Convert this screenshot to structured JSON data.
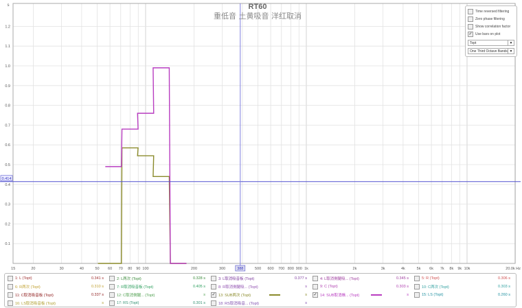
{
  "title": "RT60",
  "subtitle": "重低音 土黄吸音 洋红取消",
  "controls": {
    "time_reversed": {
      "label": "Time reversed filtering",
      "checked": false
    },
    "zero_phase": {
      "label": "Zero phase filtering",
      "checked": false
    },
    "correlation": {
      "label": "Show correlation factor",
      "checked": false
    },
    "use_bars": {
      "label": "Use bars on plot",
      "checked": true
    },
    "metric_select": "Topt",
    "band_select": "One Third Octave Bands"
  },
  "cursor": {
    "y_value": "0.414",
    "x_value": "388"
  },
  "chart_data": {
    "type": "line",
    "y_unit": "s",
    "x_unit": "Hz",
    "x_scale": "log",
    "xlim": [
      15,
      20000
    ],
    "ylim": [
      0,
      1.3
    ],
    "y_ticks": [
      "0.1",
      "0.2",
      "0.3",
      "0.4",
      "0.5",
      "0.6",
      "0.7",
      "0.8",
      "0.9",
      "1.0",
      "1.1",
      "1.2"
    ],
    "x_ticks": [
      {
        "v": 15,
        "l": "15"
      },
      {
        "v": 20,
        "l": "20"
      },
      {
        "v": 30,
        "l": "30"
      },
      {
        "v": 40,
        "l": "40"
      },
      {
        "v": 50,
        "l": "50"
      },
      {
        "v": 60,
        "l": "60"
      },
      {
        "v": 70,
        "l": "70"
      },
      {
        "v": 80,
        "l": "80"
      },
      {
        "v": 90,
        "l": "90"
      },
      {
        "v": 100,
        "l": "100"
      },
      {
        "v": 200,
        "l": "200"
      },
      {
        "v": 300,
        "l": "300"
      },
      {
        "v": 500,
        "l": "500"
      },
      {
        "v": 600,
        "l": "600"
      },
      {
        "v": 700,
        "l": "700"
      },
      {
        "v": 800,
        "l": "800"
      },
      {
        "v": 900,
        "l": "900"
      },
      {
        "v": 1000,
        "l": "1k"
      },
      {
        "v": 2000,
        "l": "2k"
      },
      {
        "v": 3000,
        "l": "3k"
      },
      {
        "v": 4000,
        "l": "4k"
      },
      {
        "v": 5000,
        "l": "5k"
      },
      {
        "v": 6000,
        "l": "6k"
      },
      {
        "v": 7000,
        "l": "7k"
      },
      {
        "v": 8000,
        "l": "8k"
      },
      {
        "v": 9000,
        "l": "9k"
      },
      {
        "v": 10000,
        "l": "10k"
      },
      {
        "v": 20000,
        "l": "20.0k Hz"
      }
    ],
    "grid": true,
    "bands": [
      63,
      80,
      100,
      125,
      160
    ],
    "series": [
      {
        "name": "14: SUB取消帳... (Topt)",
        "color": "#b83cc0",
        "values": [
          0.49,
          0.68,
          0.76,
          0.99,
          0
        ]
      },
      {
        "name": "13: SUB两次 (Topt)",
        "color": "#8a8a2a",
        "values": [
          0,
          0.585,
          0.545,
          0.44,
          0
        ]
      }
    ]
  },
  "legend": [
    {
      "label": "1: L (Topt)",
      "value": "0.341 s",
      "color": "#a03030",
      "checked": false
    },
    {
      "label": "2: L两次 (Topt)",
      "value": "0.328 s",
      "color": "#3a8a3a",
      "checked": false
    },
    {
      "label": "3: L取消吸音板 (Topt)",
      "value": "0.377 s",
      "color": "#8040a0",
      "checked": false
    },
    {
      "label": "4: L取消側腿吸... (Topt)",
      "value": "0.345 s",
      "color": "#a040a0",
      "checked": false
    },
    {
      "label": "5: R (Topt)",
      "value": "0.306 s",
      "color": "#d05050",
      "checked": false
    },
    {
      "label": "6: R两次 (Topt)",
      "value": "0.310 s",
      "color": "#c0a030",
      "checked": false
    },
    {
      "label": "7: R取消吸音板 (Topt)",
      "value": "0.405 s",
      "color": "#30a060",
      "checked": false
    },
    {
      "label": "8: R取消側腿吸... (Topt)",
      "value": "s",
      "color": "#9050b0",
      "checked": false
    },
    {
      "label": "9: C (Topt)",
      "value": "0.303 s",
      "color": "#b040b0",
      "checked": false
    },
    {
      "label": "10: C两次 (Topt)",
      "value": "0.303 s",
      "color": "#30a0a0",
      "checked": false
    },
    {
      "label": "11: C取消吸音板 (Topt)",
      "value": "0.337 s",
      "color": "#902020",
      "checked": false
    },
    {
      "label": "12: C取消側腿... (Topt)",
      "value": "s",
      "color": "#50a050",
      "checked": false
    },
    {
      "label": "13: SUB两次 (Topt)",
      "value": "s",
      "color": "#8a8a2a",
      "checked": true
    },
    {
      "label": "14: SUB取消帳... (Topt)",
      "value": "s",
      "color": "#b83cc0",
      "checked": true
    },
    {
      "label": "15: LS (Topt)",
      "value": "0.260 s",
      "color": "#2090a0",
      "checked": false
    },
    {
      "label": "16: LS取消吸音板 (Topt)",
      "value": "s",
      "color": "#b0a030",
      "checked": false
    },
    {
      "label": "17: RS (Topt)",
      "value": "0.301 s",
      "color": "#309070",
      "checked": false
    },
    {
      "label": "18: RS取消吸音... (Topt)",
      "value": "s",
      "color": "#8050b0",
      "checked": false
    }
  ]
}
